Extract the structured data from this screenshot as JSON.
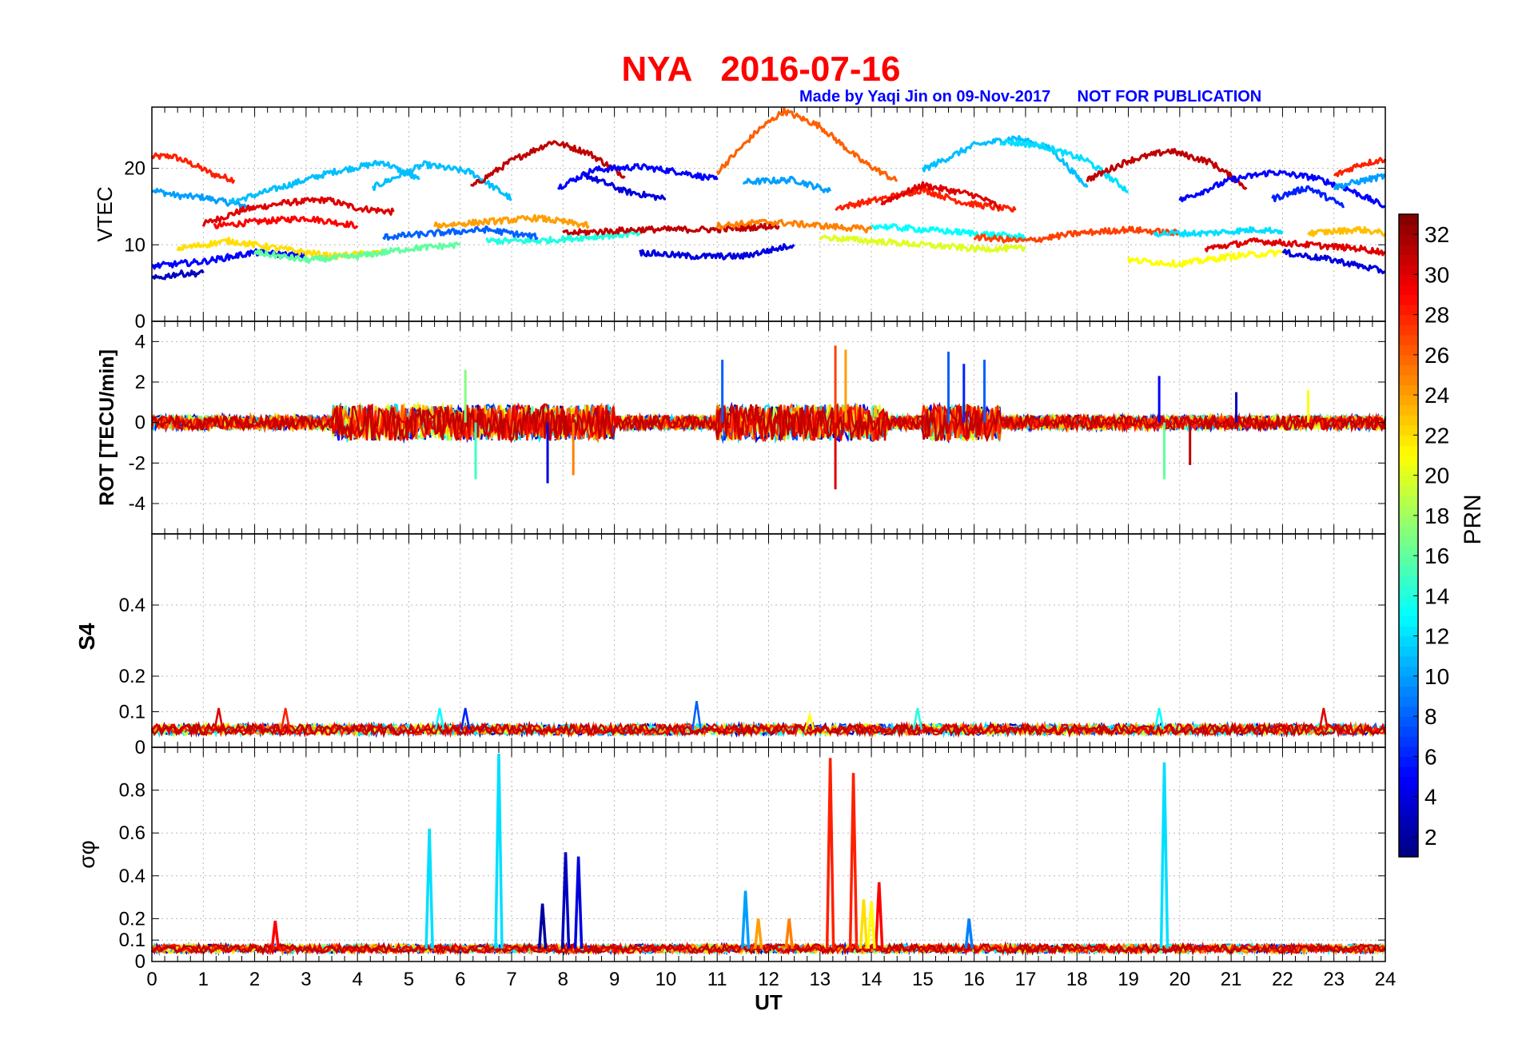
{
  "title": "NYA   2016-07-16",
  "subtitle": "Made by Yaqi Jin on 09-Nov-2017      NOT FOR PUBLICATION",
  "chart_data": [
    {
      "type": "line",
      "panel": "vtec",
      "ylabel": "VTEC",
      "xlim": [
        0,
        24
      ],
      "ylim": [
        0,
        28
      ],
      "yticks": [
        0,
        10,
        20
      ],
      "grid": true,
      "series": [
        {
          "prn": 28,
          "x": [
            0,
            0.4,
            0.8,
            1.2,
            1.6
          ],
          "y": [
            21.5,
            21.6,
            20.5,
            19.2,
            18.5
          ]
        },
        {
          "prn": 10,
          "x": [
            0,
            0.5,
            1,
            1.5,
            2.0
          ],
          "y": [
            17.2,
            16.4,
            16.2,
            15.5,
            14.8
          ]
        },
        {
          "prn": 30,
          "x": [
            1,
            1.8,
            2.6,
            3.4,
            4.0,
            4.7
          ],
          "y": [
            12.7,
            14.6,
            15.5,
            15.9,
            14.8,
            14.3
          ]
        },
        {
          "prn": 29,
          "x": [
            1.2,
            2.0,
            3.0,
            4.0
          ],
          "y": [
            12.4,
            13.0,
            13.5,
            12.5
          ]
        },
        {
          "prn": 11,
          "x": [
            1.5,
            2.5,
            3.5,
            4.5,
            5.2
          ],
          "y": [
            15.5,
            17.5,
            19.5,
            20.8,
            18.5
          ]
        },
        {
          "prn": 11,
          "x": [
            4.3,
            5.3,
            6.2,
            7.0
          ],
          "y": [
            17.5,
            20.5,
            19.5,
            16.0
          ]
        },
        {
          "prn": 31,
          "x": [
            6.2,
            7.0,
            7.8,
            8.5,
            9.2
          ],
          "y": [
            17.5,
            21.0,
            23.5,
            22.0,
            19.0
          ]
        },
        {
          "prn": 5,
          "x": [
            7.9,
            8.6,
            9.5,
            10.3,
            11.0
          ],
          "y": [
            17.5,
            19.8,
            20.2,
            19.5,
            18.5
          ]
        },
        {
          "prn": 4,
          "x": [
            8.4,
            9.2,
            10.0
          ],
          "y": [
            19.2,
            17.0,
            16.0
          ]
        },
        {
          "prn": 26,
          "x": [
            11.0,
            11.8,
            12.3,
            13.0,
            13.8,
            14.5
          ],
          "y": [
            19.5,
            25.0,
            27.5,
            25.5,
            21.0,
            18.3
          ]
        },
        {
          "prn": 10,
          "x": [
            11.5,
            12.5,
            13.2
          ],
          "y": [
            18.2,
            18.5,
            17.0
          ]
        },
        {
          "prn": 28,
          "x": [
            13.3,
            14.2,
            15.0,
            15.8,
            16.8
          ],
          "y": [
            14.8,
            16.0,
            17.2,
            15.5,
            14.5
          ]
        },
        {
          "prn": 30,
          "x": [
            14.2,
            15.0,
            16.0,
            16.5
          ],
          "y": [
            15.5,
            17.8,
            16.5,
            15.0
          ]
        },
        {
          "prn": 11,
          "x": [
            15.0,
            16.0,
            16.8,
            17.5,
            18.2
          ],
          "y": [
            19.8,
            23.0,
            24.0,
            22.5,
            17.5
          ]
        },
        {
          "prn": 12,
          "x": [
            16.5,
            17.3,
            18.2,
            19.0
          ],
          "y": [
            23.5,
            23.0,
            21.0,
            17.0
          ]
        },
        {
          "prn": 31,
          "x": [
            18.2,
            19.0,
            19.8,
            20.6,
            21.3
          ],
          "y": [
            18.5,
            21.0,
            22.3,
            20.8,
            17.5
          ]
        },
        {
          "prn": 5,
          "x": [
            20.0,
            21.0,
            21.8,
            22.6,
            23.2,
            24.0
          ],
          "y": [
            15.8,
            18.5,
            19.5,
            18.8,
            17.5,
            15.0
          ]
        },
        {
          "prn": 6,
          "x": [
            21.8,
            22.5,
            23.2
          ],
          "y": [
            16.0,
            17.5,
            15.0
          ]
        },
        {
          "prn": 28,
          "x": [
            23.0,
            23.5,
            24.0
          ],
          "y": [
            19.0,
            20.5,
            21.2
          ]
        },
        {
          "prn": 10,
          "x": [
            23.0,
            23.5,
            24.0
          ],
          "y": [
            17.5,
            18.3,
            19.0
          ]
        },
        {
          "prn": 3,
          "x": [
            0,
            0.5,
            1.0
          ],
          "y": [
            5.5,
            6.2,
            6.3
          ]
        },
        {
          "prn": 5,
          "x": [
            0,
            1,
            2,
            3
          ],
          "y": [
            7.2,
            7.8,
            9.0,
            8.5
          ]
        },
        {
          "prn": 22,
          "x": [
            0.5,
            1.5,
            2.5,
            3.5,
            4.5
          ],
          "y": [
            9.5,
            10.5,
            9.5,
            8.5,
            9.0
          ]
        },
        {
          "prn": 16,
          "x": [
            2.0,
            3.0,
            4.0,
            5.0,
            6.0
          ],
          "y": [
            9.0,
            8.0,
            8.5,
            9.5,
            10.0
          ]
        },
        {
          "prn": 8,
          "x": [
            4.5,
            5.5,
            6.5,
            7.5
          ],
          "y": [
            11.0,
            11.5,
            12.0,
            11.0
          ]
        },
        {
          "prn": 24,
          "x": [
            5.5,
            6.5,
            7.5,
            8.5
          ],
          "y": [
            12.5,
            13.0,
            13.5,
            12.5
          ]
        },
        {
          "prn": 14,
          "x": [
            6.5,
            7.5,
            8.5,
            9.5
          ],
          "y": [
            10.5,
            10.5,
            11.0,
            11.5
          ]
        },
        {
          "prn": 31,
          "x": [
            8.0,
            9.5,
            11.0,
            12.2
          ],
          "y": [
            11.5,
            12.0,
            12.0,
            12.5
          ]
        },
        {
          "prn": 4,
          "x": [
            9.5,
            10.5,
            11.5,
            12.5
          ],
          "y": [
            9.0,
            8.5,
            8.5,
            10.0
          ]
        },
        {
          "prn": 25,
          "x": [
            11.0,
            12.0,
            13.0,
            14.0
          ],
          "y": [
            12.5,
            13.0,
            12.5,
            12.0
          ]
        },
        {
          "prn": 20,
          "x": [
            13.0,
            14.0,
            15.0,
            16.0,
            17.0
          ],
          "y": [
            11.0,
            10.5,
            10.0,
            9.5,
            9.5
          ]
        },
        {
          "prn": 13,
          "x": [
            14.0,
            15.0,
            16.0,
            17.0
          ],
          "y": [
            12.5,
            12.0,
            11.5,
            11.0
          ]
        },
        {
          "prn": 27,
          "x": [
            16.0,
            17.0,
            18.0,
            19.0,
            20.0
          ],
          "y": [
            11.0,
            10.5,
            11.5,
            12.0,
            11.5
          ]
        },
        {
          "prn": 12,
          "x": [
            19.5,
            20.5,
            21.5,
            22.0
          ],
          "y": [
            11.5,
            11.5,
            12.0,
            11.8
          ]
        },
        {
          "prn": 21,
          "x": [
            19.0,
            20.0,
            21.0,
            22.0
          ],
          "y": [
            8.0,
            7.5,
            8.5,
            9.0
          ]
        },
        {
          "prn": 30,
          "x": [
            20.5,
            21.5,
            22.5,
            23.5,
            24.0
          ],
          "y": [
            9.5,
            10.5,
            10.0,
            9.5,
            9.0
          ]
        },
        {
          "prn": 4,
          "x": [
            22.0,
            23.0,
            24.0
          ],
          "y": [
            9.0,
            8.0,
            6.5
          ]
        },
        {
          "prn": 23,
          "x": [
            22.5,
            23.5,
            24.0
          ],
          "y": [
            11.5,
            12.0,
            11.5
          ]
        }
      ]
    },
    {
      "type": "line",
      "panel": "rot",
      "ylabel": "ROT [TECU/min]",
      "xlim": [
        0,
        24
      ],
      "ylim": [
        -5.5,
        5
      ],
      "yticks": [
        -4,
        -2,
        0,
        2,
        4
      ],
      "grid": true,
      "spikes": [
        {
          "prn": 8,
          "x": 11.1,
          "y": 3.1
        },
        {
          "prn": 27,
          "x": 13.3,
          "y": 3.8
        },
        {
          "prn": 24,
          "x": 13.5,
          "y": 3.6
        },
        {
          "prn": 8,
          "x": 15.5,
          "y": 3.5
        },
        {
          "prn": 6,
          "x": 15.8,
          "y": 2.9
        },
        {
          "prn": 8,
          "x": 16.2,
          "y": 3.1
        },
        {
          "prn": 4,
          "x": 7.7,
          "y": -3.0
        },
        {
          "prn": 30,
          "x": 13.3,
          "y": -3.3
        },
        {
          "prn": 15,
          "x": 6.3,
          "y": -2.8
        },
        {
          "prn": 25,
          "x": 8.2,
          "y": -2.6
        },
        {
          "prn": 16,
          "x": 19.7,
          "y": -2.8
        },
        {
          "prn": 31,
          "x": 20.2,
          "y": -2.1
        },
        {
          "prn": 17,
          "x": 6.1,
          "y": 2.6
        },
        {
          "prn": 3,
          "x": 21.1,
          "y": 1.5
        },
        {
          "prn": 21,
          "x": 22.5,
          "y": 1.6
        },
        {
          "prn": 5,
          "x": 19.6,
          "y": 2.3
        }
      ]
    },
    {
      "type": "line",
      "panel": "s4",
      "ylabel": "S4",
      "xlim": [
        0,
        24
      ],
      "ylim": [
        0,
        0.6
      ],
      "yticks": [
        0,
        0.1,
        0.2,
        0.4
      ],
      "grid": true,
      "baseline": 0.05,
      "spikes": [
        {
          "prn": 8,
          "x": 10.6,
          "y": 0.13
        },
        {
          "prn": 6,
          "x": 6.1,
          "y": 0.11
        },
        {
          "prn": 13,
          "x": 5.6,
          "y": 0.11
        },
        {
          "prn": 30,
          "x": 1.3,
          "y": 0.11
        },
        {
          "prn": 28,
          "x": 2.6,
          "y": 0.11
        },
        {
          "prn": 30,
          "x": 22.8,
          "y": 0.11
        },
        {
          "prn": 14,
          "x": 14.9,
          "y": 0.11
        },
        {
          "prn": 13,
          "x": 19.6,
          "y": 0.11
        },
        {
          "prn": 21,
          "x": 12.8,
          "y": 0.09
        }
      ]
    },
    {
      "type": "line",
      "panel": "sigma_phi",
      "ylabel": "σφ",
      "xlim": [
        0,
        24
      ],
      "ylim": [
        0,
        1.0
      ],
      "yticks": [
        0,
        0.1,
        0.2,
        0.4,
        0.6,
        0.8
      ],
      "xticks": [
        0,
        1,
        2,
        3,
        4,
        5,
        6,
        7,
        8,
        9,
        10,
        11,
        12,
        13,
        14,
        15,
        16,
        17,
        18,
        19,
        20,
        21,
        22,
        23,
        24
      ],
      "xlabel": "UT",
      "grid": true,
      "baseline": 0.06,
      "spikes": [
        {
          "prn": 12,
          "x": 6.75,
          "y": 0.97
        },
        {
          "prn": 12,
          "x": 5.4,
          "y": 0.62
        },
        {
          "prn": 28,
          "x": 13.2,
          "y": 0.95
        },
        {
          "prn": 28,
          "x": 13.65,
          "y": 0.88
        },
        {
          "prn": 29,
          "x": 14.15,
          "y": 0.37
        },
        {
          "prn": 12,
          "x": 19.7,
          "y": 0.93
        },
        {
          "prn": 3,
          "x": 8.05,
          "y": 0.51
        },
        {
          "prn": 4,
          "x": 8.3,
          "y": 0.49
        },
        {
          "prn": 2,
          "x": 7.6,
          "y": 0.27
        },
        {
          "prn": 10,
          "x": 11.55,
          "y": 0.33
        },
        {
          "prn": 24,
          "x": 11.8,
          "y": 0.2
        },
        {
          "prn": 22,
          "x": 13.85,
          "y": 0.29
        },
        {
          "prn": 21,
          "x": 14.0,
          "y": 0.28
        },
        {
          "prn": 29,
          "x": 2.4,
          "y": 0.19
        },
        {
          "prn": 9,
          "x": 15.9,
          "y": 0.2
        },
        {
          "prn": 25,
          "x": 12.4,
          "y": 0.2
        }
      ]
    }
  ],
  "colorbar": {
    "label": "PRN",
    "min": 1,
    "max": 33,
    "ticks": [
      2,
      4,
      6,
      8,
      10,
      12,
      14,
      16,
      18,
      20,
      22,
      24,
      26,
      28,
      30,
      32
    ]
  }
}
